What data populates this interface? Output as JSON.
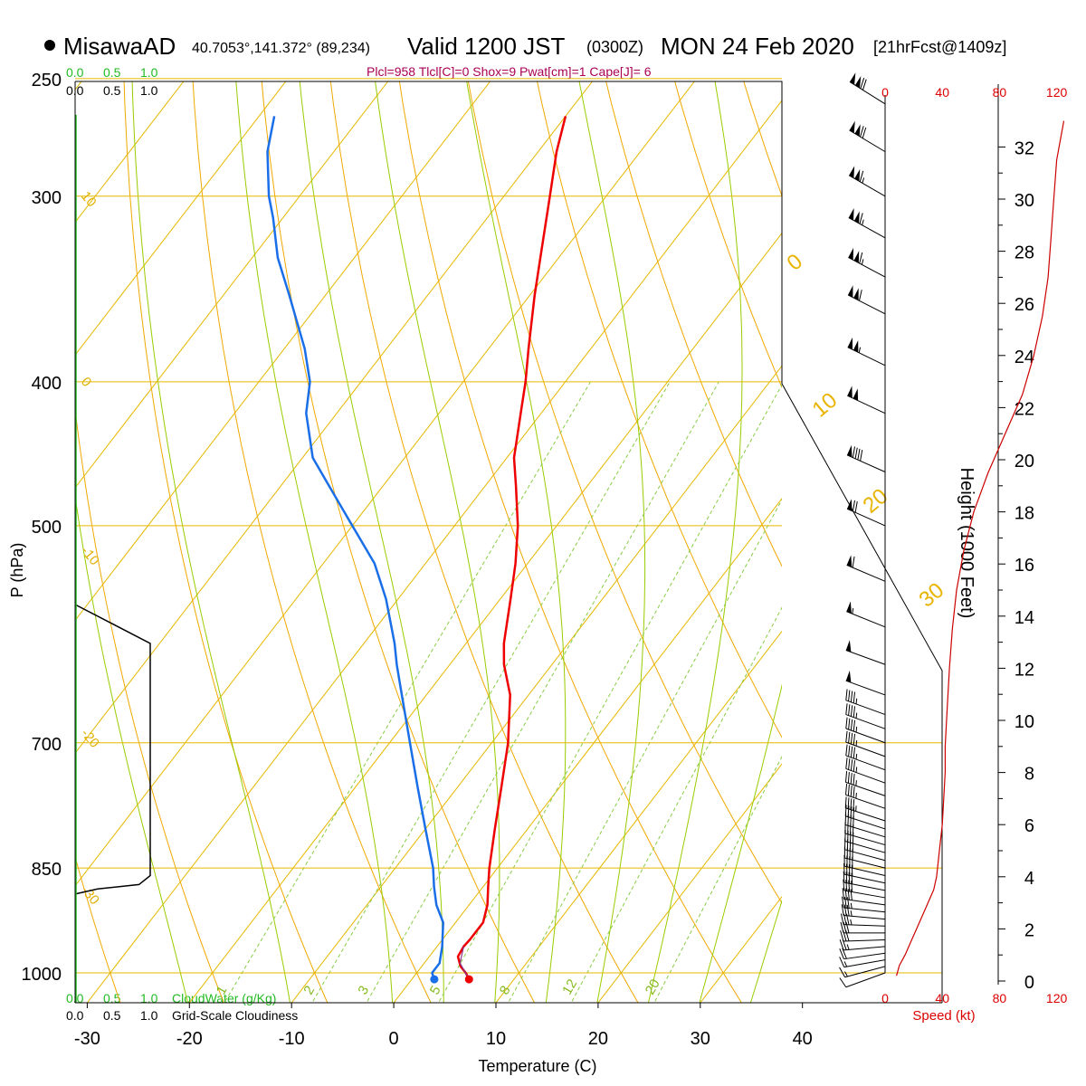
{
  "header": {
    "station": "MisawaAD",
    "coords": "40.7053°,141.372° (89,234)",
    "valid": "Valid 1200 JST",
    "zulu": "(0300Z)",
    "date": "MON 24 Feb 2020",
    "forecast": "[21hrFcst@1409z]",
    "indices": "Plcl=958 Tlcl[C]=0 Shox=9 Pwat[cm]=1 Cape[J]= 6"
  },
  "colors": {
    "temperature": "#ee0000",
    "dewpoint": "#1a6fe8",
    "isotherm": "#e6b800",
    "dry_adiabat": "#f0a800",
    "moist_adiabat": "#99cc00",
    "mixing_ratio": "#88cc44",
    "cloud_water": "#22bb22",
    "speed_curve": "#cc0000"
  },
  "chart_data": {
    "type": "line",
    "xlabel": "Temperature (C)",
    "ylabel": "P (hPa)",
    "x_ticks": [
      -30,
      -20,
      -10,
      0,
      10,
      20,
      30,
      40
    ],
    "x_ticklabels": [
      "-30",
      "-20",
      "-10",
      "0",
      "10",
      "20",
      "30",
      "40"
    ],
    "p_ticks": [
      250,
      300,
      400,
      500,
      700,
      850,
      1000
    ],
    "p_ticklabels": [
      "250",
      "300",
      "400",
      "500",
      "700",
      "850",
      "1000"
    ],
    "ylim": [
      1045,
      250
    ],
    "xlim": [
      -35,
      36
    ],
    "skew": 1,
    "isotherm_labels": [
      {
        "t": 10,
        "p": 300,
        "text": "10"
      },
      {
        "t": 0,
        "p": 400,
        "text": "0"
      },
      {
        "t": -10,
        "p": 520,
        "text": "-10"
      },
      {
        "t": -20,
        "p": 690,
        "text": "-20"
      },
      {
        "t": -30,
        "p": 880,
        "text": "-30"
      }
    ],
    "adiabat_labels": [
      {
        "text": "0"
      },
      {
        "text": "10"
      },
      {
        "text": "20"
      },
      {
        "text": "30"
      }
    ],
    "mixing_ratio_labels": [
      "1",
      "2",
      "3",
      "5",
      "8",
      "12",
      "20"
    ],
    "mixing_ratio_values": [
      1,
      2,
      3,
      5,
      8,
      12,
      20
    ],
    "series": [
      {
        "name": "Temperature",
        "p": [
          1010,
          1000,
          990,
          975,
          960,
          950,
          925,
          900,
          875,
          850,
          800,
          750,
          700,
          650,
          620,
          600,
          560,
          530,
          500,
          470,
          450,
          420,
          400,
          380,
          350,
          330,
          300,
          280,
          265
        ],
        "t": [
          5.6,
          4.8,
          3.8,
          2.8,
          2.6,
          2.7,
          2.7,
          1.8,
          0.5,
          -0.8,
          -3.2,
          -5.7,
          -8.4,
          -11.8,
          -14.7,
          -16.3,
          -19.0,
          -21.2,
          -23.8,
          -27.0,
          -29.3,
          -32.0,
          -33.9,
          -36.1,
          -39.5,
          -41.8,
          -45.5,
          -48.2,
          -50.0
        ]
      },
      {
        "name": "Dewpoint",
        "p": [
          1010,
          1000,
          985,
          960,
          925,
          900,
          875,
          850,
          800,
          750,
          700,
          650,
          620,
          600,
          560,
          530,
          500,
          470,
          450,
          420,
          400,
          380,
          350,
          330,
          310,
          300,
          280,
          265
        ],
        "t": [
          2.2,
          1.5,
          1.5,
          0.5,
          -1.2,
          -3.2,
          -4.8,
          -6.3,
          -10.0,
          -13.9,
          -18.0,
          -22.4,
          -25.2,
          -27.0,
          -31.2,
          -35.0,
          -40.0,
          -45.3,
          -49.0,
          -53.0,
          -55.0,
          -58.0,
          -63.5,
          -67.5,
          -71.0,
          -73.0,
          -76.5,
          -78.5
        ]
      }
    ],
    "surface_points": [
      {
        "name": "temperature",
        "t": 5.6,
        "p": 1010
      },
      {
        "name": "dewpoint",
        "t": 2.2,
        "p": 1010
      }
    ],
    "cloud_profile": {
      "p": [
        565,
        600,
        860,
        872,
        878,
        885
      ],
      "x_units": [
        0.0,
        1.0,
        1.0,
        0.85,
        0.3,
        0.0
      ]
    },
    "cloud_scale": {
      "green_labels": [
        "0.0",
        "0.5",
        "1.0"
      ],
      "black_labels": [
        "0.0",
        "0.5",
        "1.0"
      ],
      "cloudwater_label": "CloudWater (g/Kg)",
      "cloudiness_label": "Grid-Scale Cloudiness"
    },
    "wind": {
      "label": "Speed (kt)",
      "speed_ticks": [
        0,
        40,
        80,
        120
      ],
      "speed_ticklabels": [
        "0",
        "40",
        "80",
        "120"
      ],
      "height_label": "Height (1000 Feet)",
      "height_ticks": [
        0,
        2,
        4,
        6,
        8,
        10,
        12,
        14,
        16,
        18,
        20,
        22,
        24,
        26,
        28,
        30,
        32
      ],
      "height_ticklabels": [
        "0",
        "2",
        "4",
        "6",
        "8",
        "10",
        "12",
        "14",
        "16",
        "18",
        "20",
        "22",
        "24",
        "26",
        "28",
        "30",
        "32"
      ],
      "height_kft": [
        0.2,
        0.6,
        1.0,
        1.5,
        2.0,
        2.5,
        3.0,
        3.5,
        4.0,
        5.0,
        6.0,
        7.0,
        8.0,
        9.0,
        10.0,
        11.0,
        12.0,
        13.5,
        15.0,
        16.5,
        18.0,
        19.5,
        21.0,
        22.5,
        24.0,
        25.5,
        27.0,
        28.5,
        30.0,
        31.5,
        33.0
      ],
      "speed_kt": [
        8,
        10,
        14,
        18,
        22,
        26,
        30,
        34,
        36,
        38,
        40,
        41,
        42,
        42,
        43,
        44,
        45,
        47,
        50,
        55,
        62,
        72,
        84,
        96,
        104,
        110,
        114,
        116,
        118,
        120,
        125
      ],
      "barbs_p": [
        1000,
        990,
        980,
        970,
        960,
        950,
        940,
        930,
        920,
        910,
        900,
        890,
        880,
        870,
        860,
        850,
        840,
        830,
        820,
        810,
        800,
        790,
        775,
        760,
        745,
        730,
        715,
        700,
        685,
        670,
        650,
        620,
        585,
        545,
        500,
        460,
        420,
        390,
        360,
        340,
        320,
        300,
        280,
        260
      ],
      "barbs_dir": [
        250,
        255,
        260,
        262,
        265,
        268,
        270,
        272,
        275,
        276,
        278,
        280,
        281,
        282,
        283,
        284,
        285,
        286,
        286,
        287,
        288,
        288,
        289,
        289,
        290,
        290,
        290,
        290,
        290,
        290,
        290,
        290,
        292,
        293,
        294,
        294,
        295,
        296,
        297,
        298,
        299,
        300,
        301,
        302
      ],
      "barbs_kt": [
        10,
        13,
        16,
        20,
        24,
        28,
        32,
        34,
        36,
        37,
        38,
        39,
        40,
        40,
        40,
        40,
        40,
        41,
        42,
        42,
        42,
        43,
        43,
        44,
        44,
        45,
        45,
        46,
        46,
        47,
        48,
        50,
        55,
        62,
        72,
        88,
        98,
        106,
        110,
        114,
        116,
        117,
        118,
        119
      ]
    }
  }
}
